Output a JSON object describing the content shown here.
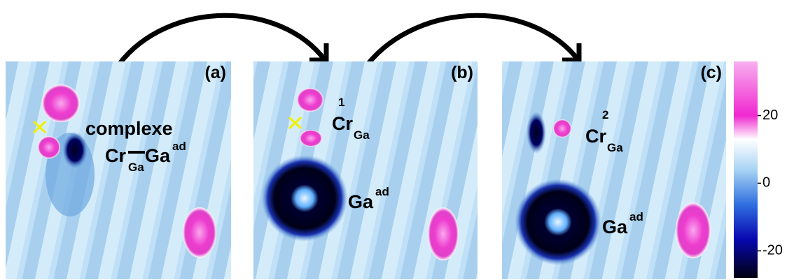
{
  "panels": [
    {
      "label": "(a)",
      "text": "complexe",
      "species": [
        {
          "main": "Cr",
          "sub": "Ga"
        },
        {
          "main": "Ga",
          "sup": "ad"
        }
      ]
    },
    {
      "label": "(b)",
      "species": [
        {
          "main": "Cr",
          "sup": "1",
          "sub": "Ga"
        },
        {
          "main": "Ga",
          "sup": "ad"
        }
      ]
    },
    {
      "label": "(c)",
      "species": [
        {
          "main": "Cr",
          "sup": "2",
          "sub": "Ga"
        },
        {
          "main": "Ga",
          "sup": "ad"
        }
      ]
    }
  ],
  "colorbar": {
    "clim": [
      -28,
      36
    ],
    "ticks": [
      -20,
      0,
      20
    ]
  }
}
